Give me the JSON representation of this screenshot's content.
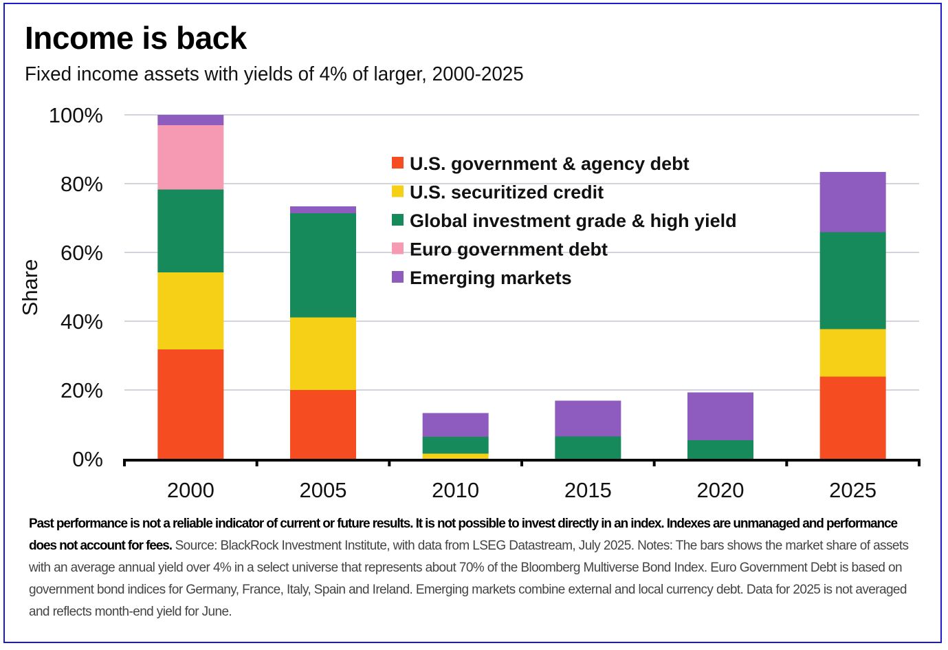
{
  "header": {
    "title": "Income is back",
    "subtitle": "Fixed income assets with yields of 4% of larger, 2000-2025"
  },
  "footnote": {
    "bold_text": "Past performance is not a reliable indicator of current or future results. It is not possible to invest directly in an index. Indexes are unmanaged and performance does not account for fees.",
    "regular_text": " Source: BlackRock Investment Institute, with data from LSEG Datastream, July 2025. Notes: The bars shows the market share of assets with an average annual yield over 4% in a select universe that represents about 70% of the Bloomberg Multiverse Bond Index. Euro Government Debt is based on government bond indices for Germany, France, Italy, Spain and Ireland. Emerging markets combine external and local currency debt. Data for 2025 is not averaged and reflects month-end yield for June."
  },
  "frame_color": "#1a1acc",
  "chart_data": {
    "type": "bar",
    "stacked": true,
    "title": "Income is back",
    "subtitle": "Fixed income assets with yields of 4% of larger, 2000-2025",
    "xlabel": "",
    "ylabel": "Share",
    "ylim": [
      0,
      100
    ],
    "y_ticks": [
      0,
      20,
      40,
      60,
      80,
      100
    ],
    "y_tick_labels": [
      "0%",
      "20%",
      "40%",
      "60%",
      "80%",
      "100%"
    ],
    "grid": true,
    "legend_position": "top-center",
    "categories": [
      "2000",
      "2005",
      "2010",
      "2015",
      "2020",
      "2025"
    ],
    "series": [
      {
        "name": "U.S. government & agency debt",
        "color": "#f64c22",
        "values": [
          31.8,
          20.0,
          0,
          0,
          0,
          23.9
        ]
      },
      {
        "name": "U.S. securitized credit",
        "color": "#f5d016",
        "values": [
          22.4,
          21.1,
          1.5,
          0,
          0,
          13.8
        ]
      },
      {
        "name": "Global investment grade & high yield",
        "color": "#168a5a",
        "values": [
          24.1,
          30.3,
          4.9,
          6.5,
          5.4,
          28.2
        ]
      },
      {
        "name": "Euro government debt",
        "color": "#f59ab2",
        "values": [
          18.7,
          0,
          0,
          0,
          0,
          0
        ]
      },
      {
        "name": "Emerging markets",
        "color": "#8e5bbe",
        "values": [
          3.0,
          2.0,
          6.9,
          10.4,
          13.9,
          17.5
        ]
      }
    ]
  }
}
